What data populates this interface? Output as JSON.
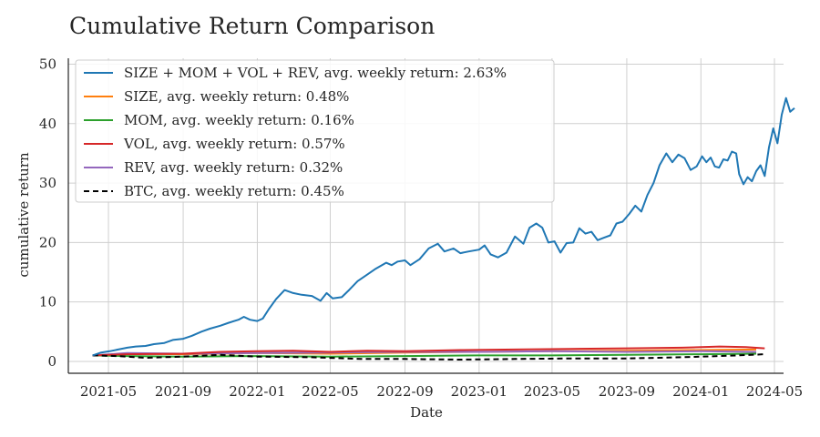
{
  "chart_data": {
    "type": "line",
    "title": "Cumulative Return Comparison",
    "xlabel": "Date",
    "ylabel": "cumulative return",
    "xlim": [
      "2021-02-24",
      "2024-05-16"
    ],
    "ylim": [
      -2,
      51
    ],
    "xticks": [
      "2021-05",
      "2021-09",
      "2022-01",
      "2022-05",
      "2022-09",
      "2023-01",
      "2023-05",
      "2023-09",
      "2024-01",
      "2024-05"
    ],
    "yticks": [
      0,
      10,
      20,
      30,
      40,
      50
    ],
    "grid": true,
    "legend_position": "top-left",
    "series": [
      {
        "name": "SIZE + MOM + VOL + REV, avg. weekly return: 2.63%",
        "color": "#1f77b4",
        "dash": "solid",
        "points": [
          [
            "2021-04-05",
            1.0
          ],
          [
            "2021-04-19",
            1.5
          ],
          [
            "2021-05-03",
            1.7
          ],
          [
            "2021-05-17",
            2.0
          ],
          [
            "2021-06-01",
            2.3
          ],
          [
            "2021-06-15",
            2.5
          ],
          [
            "2021-07-01",
            2.6
          ],
          [
            "2021-07-15",
            2.9
          ],
          [
            "2021-08-01",
            3.1
          ],
          [
            "2021-08-15",
            3.6
          ],
          [
            "2021-09-01",
            3.8
          ],
          [
            "2021-09-15",
            4.3
          ],
          [
            "2021-10-01",
            5.0
          ],
          [
            "2021-10-15",
            5.5
          ],
          [
            "2021-11-01",
            6.0
          ],
          [
            "2021-11-15",
            6.5
          ],
          [
            "2021-12-01",
            7.0
          ],
          [
            "2021-12-10",
            7.5
          ],
          [
            "2021-12-20",
            7.0
          ],
          [
            "2022-01-01",
            6.8
          ],
          [
            "2022-01-10",
            7.2
          ],
          [
            "2022-01-20",
            8.8
          ],
          [
            "2022-02-01",
            10.5
          ],
          [
            "2022-02-15",
            12.0
          ],
          [
            "2022-03-01",
            11.5
          ],
          [
            "2022-03-15",
            11.2
          ],
          [
            "2022-04-01",
            11.0
          ],
          [
            "2022-04-15",
            10.2
          ],
          [
            "2022-04-25",
            11.5
          ],
          [
            "2022-05-05",
            10.6
          ],
          [
            "2022-05-20",
            10.8
          ],
          [
            "2022-06-01",
            12.0
          ],
          [
            "2022-06-15",
            13.5
          ],
          [
            "2022-07-01",
            14.6
          ],
          [
            "2022-07-15",
            15.6
          ],
          [
            "2022-08-01",
            16.6
          ],
          [
            "2022-08-10",
            16.2
          ],
          [
            "2022-08-20",
            16.8
          ],
          [
            "2022-09-01",
            17.0
          ],
          [
            "2022-09-10",
            16.2
          ],
          [
            "2022-09-25",
            17.2
          ],
          [
            "2022-10-10",
            19.0
          ],
          [
            "2022-10-25",
            19.8
          ],
          [
            "2022-11-05",
            18.5
          ],
          [
            "2022-11-20",
            19.0
          ],
          [
            "2022-12-01",
            18.2
          ],
          [
            "2022-12-15",
            18.5
          ],
          [
            "2023-01-01",
            18.8
          ],
          [
            "2023-01-10",
            19.5
          ],
          [
            "2023-01-20",
            18.0
          ],
          [
            "2023-02-01",
            17.5
          ],
          [
            "2023-02-15",
            18.3
          ],
          [
            "2023-03-01",
            21.0
          ],
          [
            "2023-03-15",
            19.8
          ],
          [
            "2023-03-25",
            22.5
          ],
          [
            "2023-04-05",
            23.2
          ],
          [
            "2023-04-15",
            22.5
          ],
          [
            "2023-04-25",
            20.0
          ],
          [
            "2023-05-05",
            20.2
          ],
          [
            "2023-05-15",
            18.3
          ],
          [
            "2023-05-25",
            19.9
          ],
          [
            "2023-06-05",
            20.0
          ],
          [
            "2023-06-15",
            22.4
          ],
          [
            "2023-06-25",
            21.5
          ],
          [
            "2023-07-05",
            21.8
          ],
          [
            "2023-07-15",
            20.4
          ],
          [
            "2023-07-25",
            20.8
          ],
          [
            "2023-08-05",
            21.2
          ],
          [
            "2023-08-15",
            23.2
          ],
          [
            "2023-08-25",
            23.5
          ],
          [
            "2023-09-05",
            24.8
          ],
          [
            "2023-09-15",
            26.2
          ],
          [
            "2023-09-25",
            25.2
          ],
          [
            "2023-10-05",
            28.0
          ],
          [
            "2023-10-15",
            30.0
          ],
          [
            "2023-10-25",
            33.0
          ],
          [
            "2023-11-05",
            35.0
          ],
          [
            "2023-11-15",
            33.5
          ],
          [
            "2023-11-25",
            34.8
          ],
          [
            "2023-12-05",
            34.2
          ],
          [
            "2023-12-15",
            32.2
          ],
          [
            "2023-12-25",
            32.8
          ],
          [
            "2024-01-03",
            34.5
          ],
          [
            "2024-01-10",
            33.5
          ],
          [
            "2024-01-17",
            34.3
          ],
          [
            "2024-01-24",
            32.8
          ],
          [
            "2024-01-31",
            32.6
          ],
          [
            "2024-02-07",
            34.0
          ],
          [
            "2024-02-14",
            33.8
          ],
          [
            "2024-02-21",
            35.3
          ],
          [
            "2024-02-28",
            35.0
          ],
          [
            "2024-03-04",
            31.5
          ],
          [
            "2024-03-11",
            29.8
          ],
          [
            "2024-03-18",
            31.0
          ],
          [
            "2024-03-25",
            30.3
          ],
          [
            "2024-04-01",
            32.0
          ],
          [
            "2024-04-08",
            33.0
          ],
          [
            "2024-04-15",
            31.2
          ],
          [
            "2024-04-22",
            36.0
          ],
          [
            "2024-04-29",
            39.2
          ],
          [
            "2024-05-06",
            36.7
          ],
          [
            "2024-05-13",
            41.5
          ],
          [
            "2024-05-20",
            44.3
          ],
          [
            "2024-05-27",
            42.0
          ],
          [
            "2024-06-03",
            42.6
          ]
        ]
      },
      {
        "name": "SIZE, avg. weekly return: 0.48%",
        "color": "#ff7f0e",
        "dash": "solid",
        "points": [
          [
            "2021-04-05",
            1.0
          ],
          [
            "2021-06-01",
            1.3
          ],
          [
            "2021-09-01",
            1.2
          ],
          [
            "2022-01-01",
            1.4
          ],
          [
            "2022-05-01",
            1.3
          ],
          [
            "2022-09-01",
            1.5
          ],
          [
            "2023-01-01",
            1.6
          ],
          [
            "2023-05-01",
            1.7
          ],
          [
            "2023-09-01",
            1.8
          ],
          [
            "2024-01-01",
            1.9
          ],
          [
            "2024-04-01",
            2.0
          ]
        ]
      },
      {
        "name": "MOM, avg. weekly return: 0.16%",
        "color": "#2ca02c",
        "dash": "solid",
        "points": [
          [
            "2021-04-05",
            1.0
          ],
          [
            "2021-06-01",
            0.9
          ],
          [
            "2021-09-01",
            0.8
          ],
          [
            "2022-01-01",
            0.9
          ],
          [
            "2022-05-01",
            0.8
          ],
          [
            "2022-09-01",
            0.9
          ],
          [
            "2023-01-01",
            1.0
          ],
          [
            "2023-05-01",
            1.0
          ],
          [
            "2023-09-01",
            1.1
          ],
          [
            "2024-01-01",
            1.2
          ],
          [
            "2024-04-01",
            1.3
          ]
        ]
      },
      {
        "name": "VOL, avg. weekly return: 0.57%",
        "color": "#d62728",
        "dash": "solid",
        "points": [
          [
            "2021-04-05",
            1.0
          ],
          [
            "2021-06-01",
            1.2
          ],
          [
            "2021-09-01",
            1.3
          ],
          [
            "2021-11-01",
            1.6
          ],
          [
            "2022-01-01",
            1.7
          ],
          [
            "2022-03-01",
            1.8
          ],
          [
            "2022-05-01",
            1.6
          ],
          [
            "2022-07-01",
            1.8
          ],
          [
            "2022-09-01",
            1.7
          ],
          [
            "2022-12-01",
            1.9
          ],
          [
            "2023-03-01",
            2.0
          ],
          [
            "2023-06-01",
            2.1
          ],
          [
            "2023-09-01",
            2.2
          ],
          [
            "2023-12-01",
            2.3
          ],
          [
            "2024-02-01",
            2.5
          ],
          [
            "2024-03-15",
            2.4
          ],
          [
            "2024-04-15",
            2.2
          ]
        ]
      },
      {
        "name": "REV, avg. weekly return: 0.32%",
        "color": "#9467bd",
        "dash": "solid",
        "points": [
          [
            "2021-04-05",
            1.0
          ],
          [
            "2021-06-01",
            1.4
          ],
          [
            "2021-09-01",
            1.3
          ],
          [
            "2022-01-01",
            1.4
          ],
          [
            "2022-05-01",
            1.5
          ],
          [
            "2022-09-01",
            1.6
          ],
          [
            "2023-01-01",
            1.6
          ],
          [
            "2023-05-01",
            1.7
          ],
          [
            "2023-09-01",
            1.6
          ],
          [
            "2024-01-01",
            1.7
          ],
          [
            "2024-04-01",
            1.6
          ]
        ]
      },
      {
        "name": "BTC, avg. weekly return: 0.45%",
        "color": "#000000",
        "dash": "dashed",
        "points": [
          [
            "2021-04-05",
            1.0
          ],
          [
            "2021-05-15",
            0.9
          ],
          [
            "2021-07-01",
            0.6
          ],
          [
            "2021-09-01",
            0.8
          ],
          [
            "2021-11-01",
            1.1
          ],
          [
            "2022-01-01",
            0.8
          ],
          [
            "2022-04-01",
            0.7
          ],
          [
            "2022-06-20",
            0.4
          ],
          [
            "2022-09-01",
            0.4
          ],
          [
            "2022-12-01",
            0.3
          ],
          [
            "2023-03-01",
            0.4
          ],
          [
            "2023-06-01",
            0.5
          ],
          [
            "2023-09-01",
            0.5
          ],
          [
            "2023-12-01",
            0.7
          ],
          [
            "2024-03-01",
            1.0
          ],
          [
            "2024-04-15",
            1.2
          ]
        ]
      }
    ]
  }
}
